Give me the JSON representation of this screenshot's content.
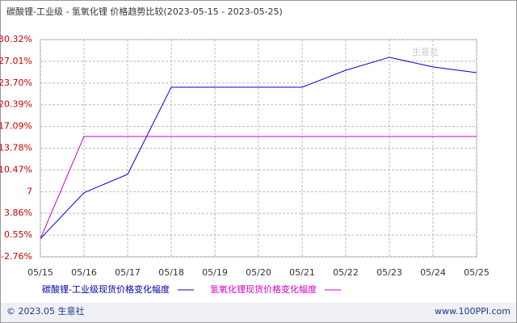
{
  "chart_data": {
    "type": "line",
    "title": "碳酸锂-工业级 - 氢氧化锂 价格趋势比较(2023-05-15 - 2023-05-25)",
    "categories": [
      "05/15",
      "05/16",
      "05/17",
      "05/18",
      "05/19",
      "05/20",
      "05/21",
      "05/22",
      "05/23",
      "05/24",
      "05/25"
    ],
    "series": [
      {
        "name": "碳酸锂-工业级现货价格变化幅度",
        "color": "#0000cc",
        "values": [
          0,
          7,
          9.8,
          23.07,
          23.07,
          23.07,
          23.07,
          25.65,
          27.62,
          26.15,
          25.28
        ]
      },
      {
        "name": "氢氧化锂现货价格变化幅度",
        "color": "#cc00cc",
        "values": [
          0,
          15.57,
          15.57,
          15.57,
          15.57,
          15.57,
          15.57,
          15.57,
          15.57,
          15.57,
          15.57
        ]
      }
    ],
    "ylim": [
      -2.76,
      30.32
    ],
    "yticks": [
      {
        "value": 30.32,
        "label": "30.32%"
      },
      {
        "value": 27.01,
        "label": "27.01%"
      },
      {
        "value": 23.7,
        "label": "23.70%"
      },
      {
        "value": 20.39,
        "label": "20.39%"
      },
      {
        "value": 17.09,
        "label": "17.09%"
      },
      {
        "value": 13.78,
        "label": "13.78%"
      },
      {
        "value": 10.47,
        "label": "10.47%"
      },
      {
        "value": 7.16,
        "label": "7"
      },
      {
        "value": 3.86,
        "label": "3.86%"
      },
      {
        "value": 0.55,
        "label": "0.55%"
      },
      {
        "value": -2.76,
        "label": "-2.76%"
      }
    ],
    "grid": true,
    "watermark": "生意社",
    "footer_left": "© 2023.05 生意社",
    "footer_right": "www.100PPI.com"
  }
}
